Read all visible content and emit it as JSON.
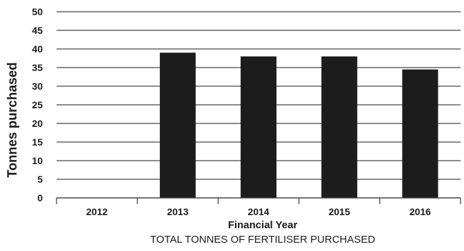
{
  "chart_data": {
    "type": "bar",
    "categories": [
      "2012",
      "2013",
      "2014",
      "2015",
      "2016"
    ],
    "values": [
      0,
      39,
      38,
      38,
      34.5
    ],
    "xlabel": "Financial Year",
    "ylabel": "Tonnes purchased",
    "caption": "TOTAL TONNES OF FERTILISER PURCHASED",
    "ylim": [
      0,
      50
    ],
    "yticks": [
      0,
      5,
      10,
      15,
      20,
      25,
      30,
      35,
      40,
      45,
      50
    ],
    "grid": true,
    "bar_color": "#1c1c1c",
    "grid_color": "#444444"
  }
}
